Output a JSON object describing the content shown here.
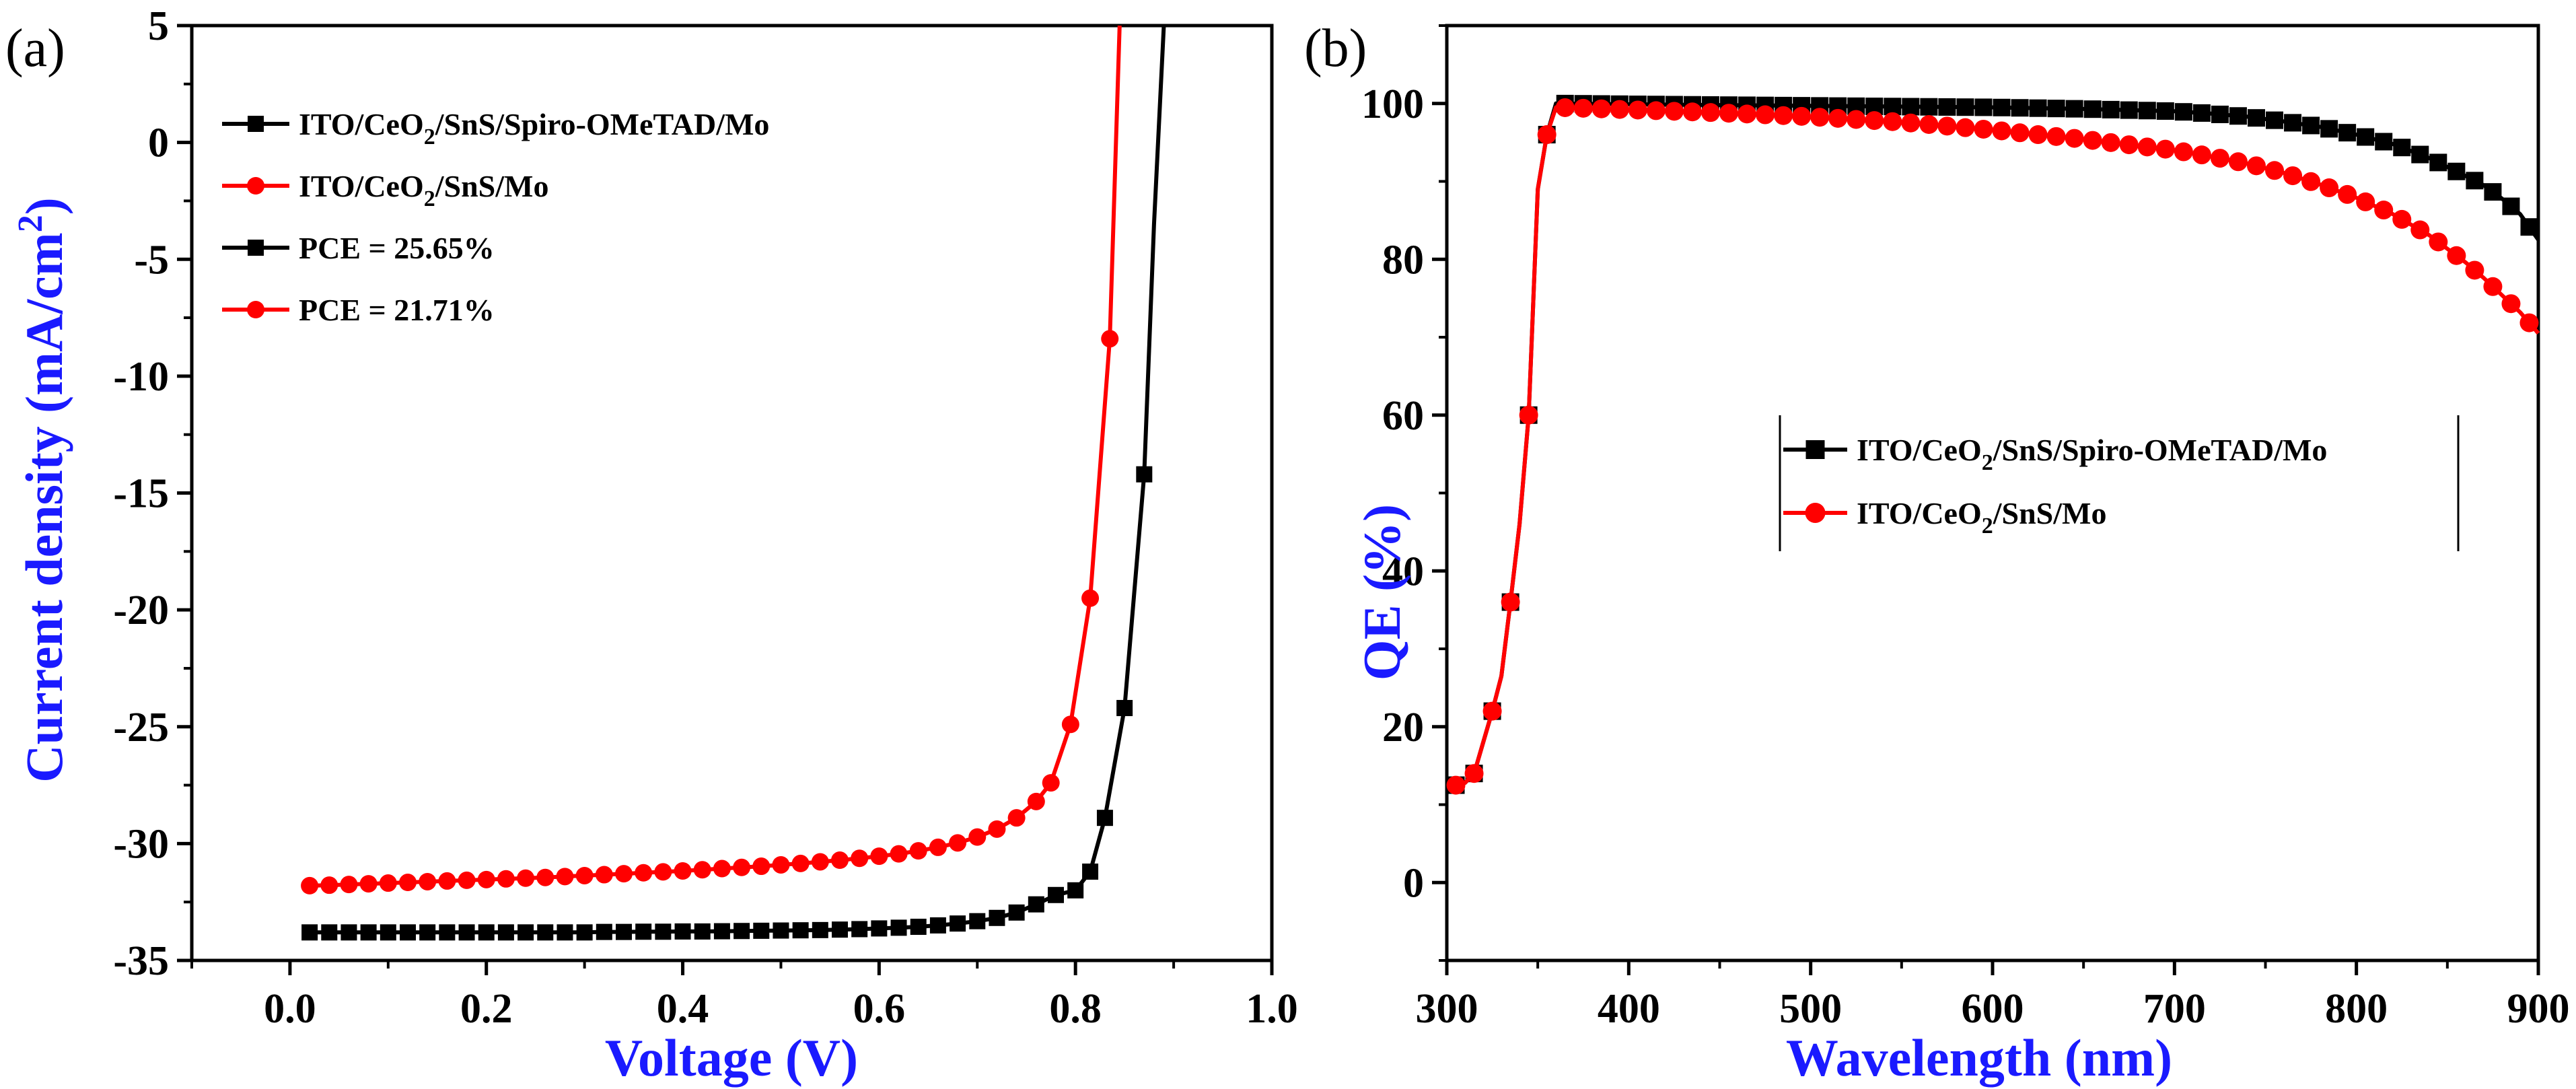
{
  "figure": {
    "colors": {
      "black_series": "#000000",
      "red_series": "#ff0000",
      "axis_title": "#1a1aff"
    }
  },
  "chart_data": [
    {
      "type": "line",
      "panel_label": "(a)",
      "xlabel": "Voltage (V)",
      "ylabel": "Current density (mA/cm2)",
      "ylabel_parts": {
        "main": "Current density (mA/cm",
        "sup": "2",
        "close": ")"
      },
      "xlim": [
        -0.1,
        1.0
      ],
      "ylim": [
        -35,
        5
      ],
      "xticks": [
        "0.0",
        "0.2",
        "0.4",
        "0.6",
        "0.8",
        "1.0"
      ],
      "yticks": [
        "5",
        "0",
        "-5",
        "-10",
        "-15",
        "-20",
        "-25",
        "-30",
        "-35"
      ],
      "legend": {
        "position": "top-left",
        "entries": [
          {
            "pre": "ITO/CeO",
            "sub": "2",
            "post": "/SnS/Spiro-OMeTAD/Mo",
            "color": "#000000",
            "marker": "square"
          },
          {
            "pre": "ITO/CeO",
            "sub": "2",
            "post": "/SnS/Mo",
            "color": "#ff0000",
            "marker": "circle"
          },
          {
            "pre": "PCE = 25.65%",
            "sub": "",
            "post": "",
            "color": "#000000",
            "marker": "square"
          },
          {
            "pre": "PCE = 21.71%",
            "sub": "",
            "post": "",
            "color": "#ff0000",
            "marker": "circle"
          }
        ]
      },
      "series": [
        {
          "name": "ITO/CeO2/SnS/Spiro-OMeTAD/Mo",
          "color": "#000000",
          "marker": "square",
          "x": [
            0.02,
            0.04,
            0.06,
            0.08,
            0.1,
            0.12,
            0.14,
            0.16,
            0.18,
            0.2,
            0.22,
            0.24,
            0.26,
            0.28,
            0.3,
            0.32,
            0.34,
            0.36,
            0.38,
            0.4,
            0.42,
            0.44,
            0.46,
            0.48,
            0.5,
            0.52,
            0.54,
            0.56,
            0.58,
            0.6,
            0.62,
            0.64,
            0.66,
            0.68,
            0.7,
            0.72,
            0.74,
            0.76,
            0.78,
            0.8,
            0.815,
            0.83,
            0.85,
            0.87,
            0.88,
            0.89
          ],
          "y": [
            -33.8,
            -33.8,
            -33.8,
            -33.8,
            -33.8,
            -33.8,
            -33.8,
            -33.8,
            -33.8,
            -33.8,
            -33.8,
            -33.8,
            -33.8,
            -33.8,
            -33.8,
            -33.78,
            -33.78,
            -33.77,
            -33.77,
            -33.76,
            -33.76,
            -33.75,
            -33.74,
            -33.73,
            -33.72,
            -33.71,
            -33.7,
            -33.68,
            -33.66,
            -33.63,
            -33.6,
            -33.56,
            -33.5,
            -33.42,
            -33.32,
            -33.18,
            -32.95,
            -32.6,
            -32.2,
            -32.0,
            -31.2,
            -28.9,
            -24.2,
            -14.2,
            -3.5,
            5.0
          ],
          "markers_x": [
            0.02,
            0.04,
            0.06,
            0.08,
            0.1,
            0.12,
            0.14,
            0.16,
            0.18,
            0.2,
            0.22,
            0.24,
            0.26,
            0.28,
            0.3,
            0.32,
            0.34,
            0.36,
            0.38,
            0.4,
            0.42,
            0.44,
            0.46,
            0.48,
            0.5,
            0.52,
            0.54,
            0.56,
            0.58,
            0.6,
            0.62,
            0.64,
            0.66,
            0.68,
            0.7,
            0.72,
            0.74,
            0.76,
            0.78,
            0.8,
            0.815,
            0.83,
            0.85,
            0.87
          ]
        },
        {
          "name": "ITO/CeO2/SnS/Mo",
          "color": "#ff0000",
          "marker": "circle",
          "x": [
            0.02,
            0.04,
            0.06,
            0.08,
            0.1,
            0.12,
            0.14,
            0.16,
            0.18,
            0.2,
            0.22,
            0.24,
            0.26,
            0.28,
            0.3,
            0.32,
            0.34,
            0.36,
            0.38,
            0.4,
            0.42,
            0.44,
            0.46,
            0.48,
            0.5,
            0.52,
            0.54,
            0.56,
            0.58,
            0.6,
            0.62,
            0.64,
            0.66,
            0.68,
            0.7,
            0.72,
            0.74,
            0.76,
            0.775,
            0.795,
            0.815,
            0.835,
            0.845
          ],
          "y": [
            -31.8,
            -31.78,
            -31.75,
            -31.72,
            -31.69,
            -31.66,
            -31.63,
            -31.6,
            -31.57,
            -31.54,
            -31.51,
            -31.48,
            -31.45,
            -31.41,
            -31.37,
            -31.33,
            -31.29,
            -31.25,
            -31.21,
            -31.17,
            -31.12,
            -31.07,
            -31.02,
            -30.97,
            -30.91,
            -30.85,
            -30.78,
            -30.71,
            -30.63,
            -30.54,
            -30.44,
            -30.31,
            -30.16,
            -29.97,
            -29.72,
            -29.38,
            -28.9,
            -28.2,
            -27.4,
            -24.9,
            -19.5,
            -8.4,
            5.0
          ],
          "markers_x": [
            0.02,
            0.04,
            0.06,
            0.08,
            0.1,
            0.12,
            0.14,
            0.16,
            0.18,
            0.2,
            0.22,
            0.24,
            0.26,
            0.28,
            0.3,
            0.32,
            0.34,
            0.36,
            0.38,
            0.4,
            0.42,
            0.44,
            0.46,
            0.48,
            0.5,
            0.52,
            0.54,
            0.56,
            0.58,
            0.6,
            0.62,
            0.64,
            0.66,
            0.68,
            0.7,
            0.72,
            0.74,
            0.76,
            0.775,
            0.795,
            0.815,
            0.835
          ]
        }
      ]
    },
    {
      "type": "line",
      "panel_label": "(b)",
      "xlabel": "Wavelength (nm)",
      "ylabel": "QE (%)",
      "xlim": [
        300,
        900
      ],
      "ylim": [
        -10,
        110
      ],
      "xticks": [
        "300",
        "400",
        "500",
        "600",
        "700",
        "800",
        "900"
      ],
      "yticks": [
        "100",
        "80",
        "60",
        "40",
        "20",
        "0"
      ],
      "legend": {
        "position": "center-right",
        "entries": [
          {
            "pre": "ITO/CeO",
            "sub": "2",
            "post": "/SnS/Spiro-OMeTAD/Mo",
            "color": "#000000",
            "marker": "square"
          },
          {
            "pre": "ITO/CeO",
            "sub": "2",
            "post": "/SnS/Mo",
            "color": "#ff0000",
            "marker": "circle"
          }
        ]
      },
      "series": [
        {
          "name": "ITO/CeO2/SnS/Spiro-OMeTAD/Mo",
          "color": "#000000",
          "marker": "square",
          "x": [
            305,
            310,
            315,
            320,
            325,
            330,
            335,
            340,
            345,
            350,
            355,
            360,
            400,
            450,
            500,
            550,
            600,
            650,
            700,
            720,
            740,
            760,
            780,
            800,
            820,
            840,
            860,
            870,
            880,
            890,
            900
          ],
          "y": [
            12.5,
            12.8,
            14,
            18,
            22,
            26.5,
            36,
            46,
            60,
            89,
            96,
            100,
            99.9,
            99.8,
            99.7,
            99.6,
            99.5,
            99.3,
            99.0,
            98.7,
            98.3,
            97.7,
            97.0,
            96.0,
            94.8,
            93.0,
            90.7,
            89.5,
            87.8,
            85.8,
            82.5
          ]
        },
        {
          "name": "ITO/CeO2/SnS/Mo",
          "color": "#ff0000",
          "marker": "circle",
          "x": [
            305,
            310,
            315,
            320,
            325,
            330,
            335,
            340,
            345,
            350,
            355,
            360,
            400,
            450,
            500,
            550,
            600,
            650,
            700,
            720,
            740,
            760,
            780,
            800,
            820,
            840,
            860,
            870,
            880,
            890,
            900
          ],
          "y": [
            12.5,
            12.8,
            14,
            18,
            22,
            26.5,
            36,
            46,
            60,
            89,
            96,
            99.5,
            99.2,
            98.8,
            98.3,
            97.6,
            96.6,
            95.4,
            94.0,
            93.2,
            92.3,
            91.1,
            89.6,
            87.9,
            85.8,
            83.1,
            79.6,
            77.6,
            75.4,
            73.2,
            70.5
          ]
        }
      ]
    }
  ]
}
